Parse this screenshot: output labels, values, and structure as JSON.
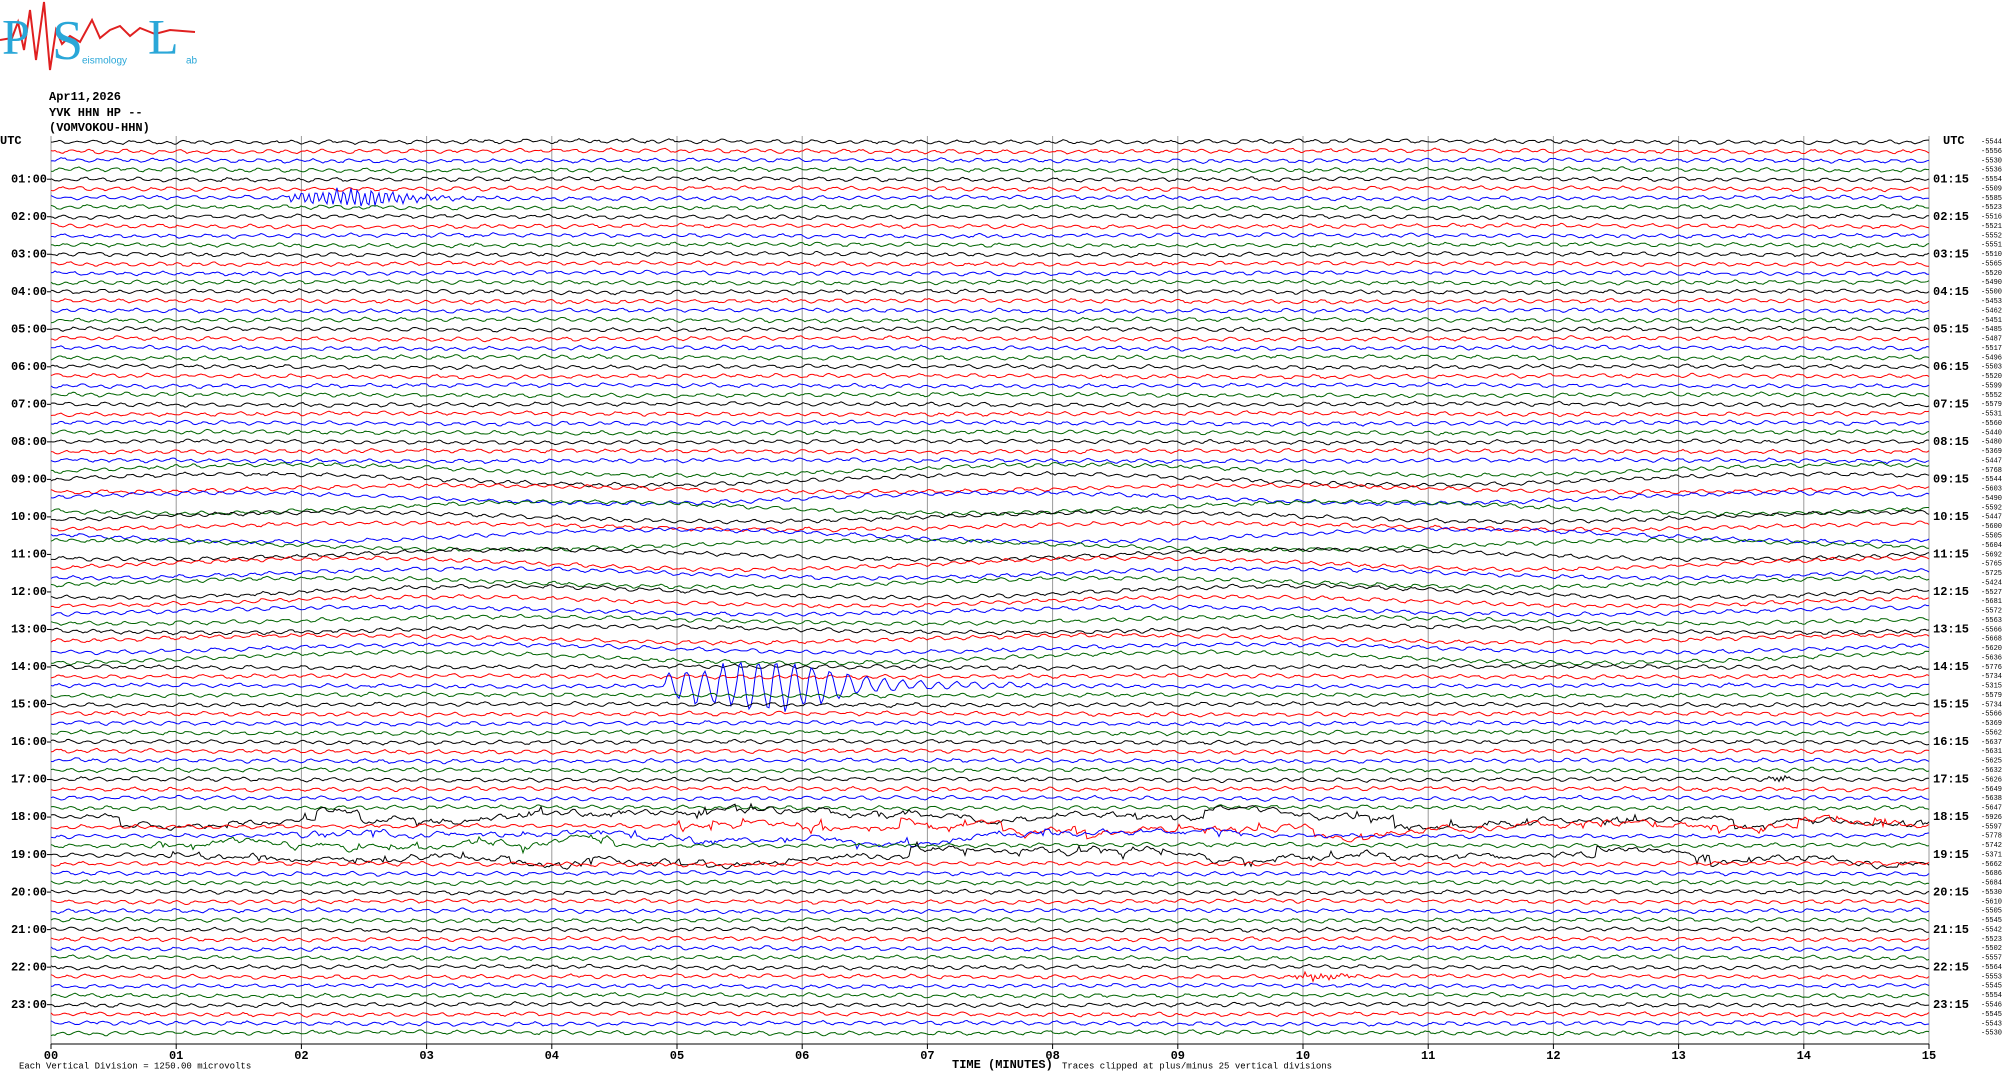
{
  "logo": {
    "letters": [
      "P",
      "S",
      "L"
    ],
    "words": [
      "eismology",
      "ab"
    ]
  },
  "header": [
    "Apr11,2026",
    "YVK HHN HP --",
    "(VOMVOKOU-HHN)"
  ],
  "left_axis": {
    "title": "UTC",
    "labels": [
      "01:00",
      "02:00",
      "03:00",
      "04:00",
      "05:00",
      "06:00",
      "07:00",
      "08:00",
      "09:00",
      "10:00",
      "11:00",
      "12:00",
      "13:00",
      "14:00",
      "15:00",
      "16:00",
      "17:00",
      "18:00",
      "19:00",
      "20:00",
      "21:00",
      "22:00",
      "23:00"
    ]
  },
  "right_axis": {
    "title": "UTC",
    "labels": [
      "01:15",
      "02:15",
      "03:15",
      "04:15",
      "05:15",
      "06:15",
      "07:15",
      "08:15",
      "09:15",
      "10:15",
      "11:15",
      "12:15",
      "13:15",
      "14:15",
      "15:15",
      "16:15",
      "17:15",
      "18:15",
      "19:15",
      "20:15",
      "21:15",
      "22:15",
      "23:15"
    ],
    "offsets": [
      "-5544",
      "-5556",
      "-5530",
      "-5536",
      "-5554",
      "-5509",
      "-5585",
      "-5523",
      "-5516",
      "-5521",
      "-5552",
      "-5551",
      "-5510",
      "-5565",
      "-5520",
      "-5490",
      "-5500",
      "-5453",
      "-5462",
      "-5451",
      "-5485",
      "-5487",
      "-5517",
      "-5496",
      "-5503",
      "-5520",
      "-5599",
      "-5552",
      "-5579",
      "-5531",
      "-5560",
      "-5440",
      "-5480",
      "-5369",
      "-5447",
      "-5768",
      "-5544",
      "-5603",
      "-5490",
      "-5592",
      "-5447",
      "-5600",
      "-5505",
      "-5604",
      "-5692",
      "-5765",
      "-5725",
      "-5424",
      "-5527",
      "-5681",
      "-5572",
      "-5563",
      "-5566",
      "-5668",
      "-5620",
      "-5636",
      "-5776",
      "-5734",
      "-5315",
      "-5579",
      "-5734",
      "-5566",
      "-5369",
      "-5562",
      "-5637",
      "-5631",
      "-5625",
      "-5632",
      "-5626",
      "-5649",
      "-5638",
      "-5647",
      "-5926",
      "-5597",
      "-5778",
      "-5742",
      "-5371",
      "-5662",
      "-5686",
      "-5684",
      "-5530",
      "-5610",
      "-5505",
      "-5545",
      "-5542",
      "-5523",
      "-5502",
      "-5557",
      "-5564",
      "-5553",
      "-5545",
      "-5554",
      "-5546",
      "-5545",
      "-5543",
      "-5530"
    ]
  },
  "x_axis": {
    "ticks": [
      "00",
      "01",
      "02",
      "03",
      "04",
      "05",
      "06",
      "07",
      "08",
      "09",
      "10",
      "11",
      "12",
      "13",
      "14",
      "15"
    ],
    "title": "TIME (MINUTES)"
  },
  "footer": {
    "scale": "Each Vertical Division = 1250.00 microvolts",
    "clip": "Traces clipped at plus/minus 25 vertical divisions"
  }
}
